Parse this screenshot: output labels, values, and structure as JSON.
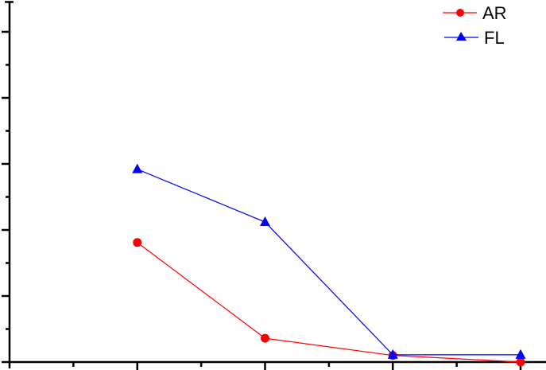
{
  "chart_data": {
    "type": "line",
    "title": "",
    "xlabel": "",
    "ylabel": "",
    "x": [
      1,
      2,
      3,
      4
    ],
    "x_tick_labels": [],
    "y_tick_labels": [],
    "xlim": [
      0,
      4.2
    ],
    "ylim": [
      0,
      5.45
    ],
    "y_major_ticks": [
      0,
      1,
      2,
      3,
      4,
      5
    ],
    "grid": false,
    "legend_position": "top-right",
    "series": [
      {
        "name": "AR",
        "color": "#ff0000",
        "marker": "circle",
        "values": [
          1.81,
          0.36,
          0.1,
          0.0
        ]
      },
      {
        "name": "FL",
        "color": "#0000ff",
        "marker": "triangle",
        "values": [
          2.92,
          2.12,
          0.11,
          0.11
        ]
      }
    ]
  },
  "legend": {
    "items": [
      {
        "label": "AR",
        "color": "#ff0000",
        "marker": "circle"
      },
      {
        "label": "FL",
        "color": "#0000ff",
        "marker": "triangle"
      }
    ]
  }
}
